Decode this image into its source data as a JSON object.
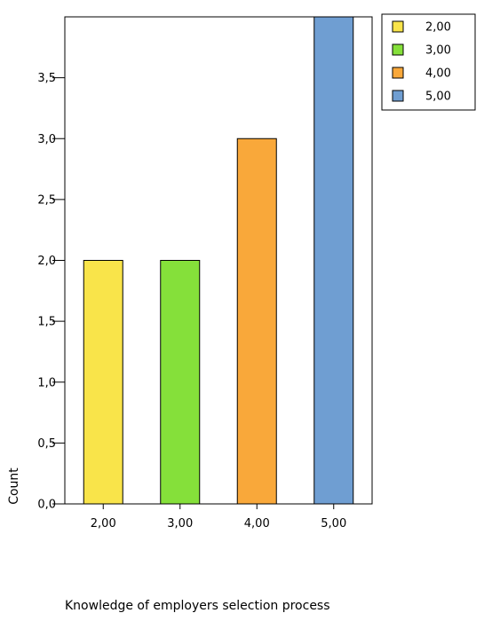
{
  "chart_data": {
    "type": "bar",
    "categories": [
      "2,00",
      "3,00",
      "4,00",
      "5,00"
    ],
    "values": [
      2,
      2,
      3,
      4
    ],
    "xlabel": "Knowledge of employers selection process",
    "ylabel": "Count",
    "ylim": [
      0,
      4
    ],
    "yticks": [
      0,
      0.5,
      1,
      1.5,
      2,
      2.5,
      3,
      3.5
    ],
    "ytick_labels": [
      "0,0",
      "0,5",
      "1,0",
      "1,5",
      "2,0",
      "2,5",
      "3,0",
      "3,5"
    ],
    "colors": [
      "#f9e44a",
      "#85e03a",
      "#f9a83a",
      "#6f9ed2"
    ],
    "legend": {
      "placement": "top-right outside",
      "entries": [
        "2,00",
        "3,00",
        "4,00",
        "5,00"
      ]
    },
    "grid": false
  }
}
